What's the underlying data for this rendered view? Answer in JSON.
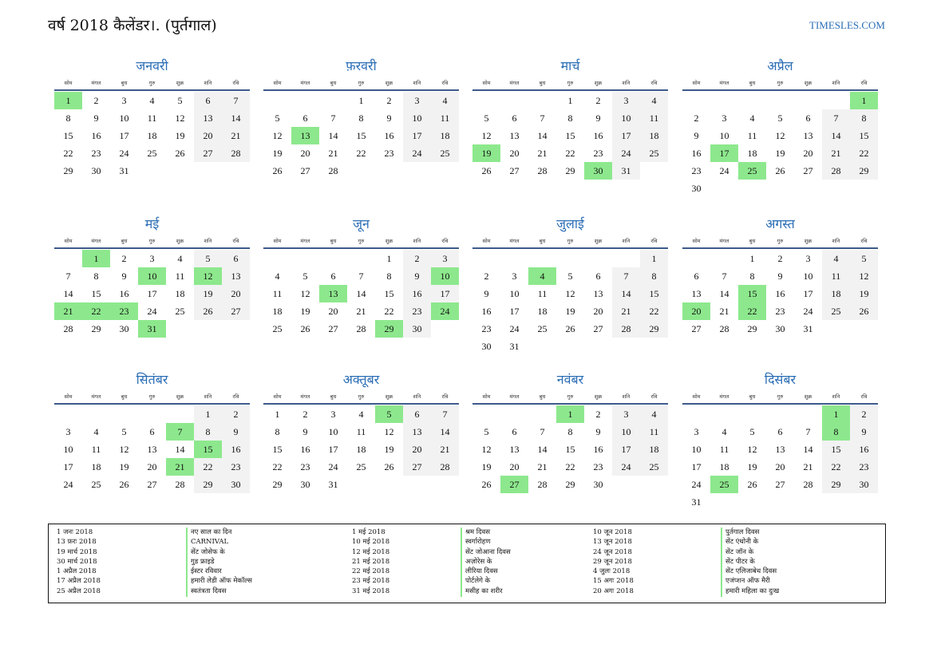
{
  "title": "वर्ष 2018 कैलेंडर।. (पुर्तगाल)",
  "site": "TIMESLES.COM",
  "weekdays": [
    "सोम",
    "मंगल",
    "बुध",
    "गुरु",
    "शुक्र",
    "शनि",
    "रवि"
  ],
  "colors": {
    "accent": "#2a6db5",
    "holiday": "#8de88d",
    "weekend": "#f2f2f2",
    "rule": "#3d5a8a"
  },
  "months": [
    {
      "name": "जनवरी",
      "offset": 0,
      "days": 31,
      "holidays": [
        1
      ]
    },
    {
      "name": "फ़रवरी",
      "offset": 3,
      "days": 28,
      "holidays": [
        13
      ]
    },
    {
      "name": "मार्च",
      "offset": 3,
      "days": 31,
      "holidays": [
        19,
        30
      ]
    },
    {
      "name": "अप्रैल",
      "offset": 6,
      "days": 30,
      "holidays": [
        1,
        17,
        25
      ]
    },
    {
      "name": "मई",
      "offset": 1,
      "days": 31,
      "holidays": [
        1,
        10,
        12,
        21,
        22,
        23,
        31
      ]
    },
    {
      "name": "जून",
      "offset": 4,
      "days": 30,
      "holidays": [
        10,
        13,
        24,
        29
      ]
    },
    {
      "name": "जुलाई",
      "offset": 6,
      "days": 31,
      "holidays": [
        4
      ]
    },
    {
      "name": "अगस्त",
      "offset": 2,
      "days": 31,
      "holidays": [
        15,
        20,
        22
      ]
    },
    {
      "name": "सितंबर",
      "offset": 5,
      "days": 30,
      "holidays": [
        7,
        15,
        21
      ]
    },
    {
      "name": "अक्तूबर",
      "offset": 0,
      "days": 31,
      "holidays": [
        5
      ]
    },
    {
      "name": "नवंबर",
      "offset": 3,
      "days": 30,
      "holidays": [
        1,
        27
      ]
    },
    {
      "name": "दिसंबर",
      "offset": 5,
      "days": 31,
      "holidays": [
        1,
        8,
        25
      ]
    }
  ],
  "holiday_list": [
    {
      "date": "1 जनः 2018",
      "name": "नए साल का दिन"
    },
    {
      "date": "13 फ़रः 2018",
      "name": "CARNIVAL"
    },
    {
      "date": "19 मार्च 2018",
      "name": "सेंट जोसेफ के"
    },
    {
      "date": "30 मार्च 2018",
      "name": "गुड फ्राइडे"
    },
    {
      "date": "1 अप्रैल 2018",
      "name": "ईस्टर रविवार"
    },
    {
      "date": "17 अप्रैल 2018",
      "name": "हमारी लेडी ऑफ मेकॉल्स"
    },
    {
      "date": "25 अप्रैल 2018",
      "name": "स्वतंत्रता दिवस"
    },
    {
      "date": "1 मई 2018",
      "name": "श्रम दिवस"
    },
    {
      "date": "10 मई 2018",
      "name": "स्वर्गारोहण"
    },
    {
      "date": "12 मई 2018",
      "name": "सेंट जोआना दिवस"
    },
    {
      "date": "21 मई 2018",
      "name": "अज़ोरेस के"
    },
    {
      "date": "22 मई 2018",
      "name": "लीरिया दिवस"
    },
    {
      "date": "23 मई 2018",
      "name": "पोर्टलेगे के"
    },
    {
      "date": "31 मई 2018",
      "name": "मसीह का शरीर"
    },
    {
      "date": "10 जून 2018",
      "name": "पुर्तगाल दिवस"
    },
    {
      "date": "13 जून 2018",
      "name": "सेंट एंथोनी के"
    },
    {
      "date": "24 जून 2018",
      "name": "सेंट जॉन के"
    },
    {
      "date": "29 जून 2018",
      "name": "सेंट पीटर के"
    },
    {
      "date": "4 जुलः 2018",
      "name": "सेंट एलिजाबेथ दिवस"
    },
    {
      "date": "15 अगः 2018",
      "name": "एजंप्शन ऑफ मैरी"
    },
    {
      "date": "20 अगः 2018",
      "name": "हमारी महिला का दुःख"
    }
  ]
}
